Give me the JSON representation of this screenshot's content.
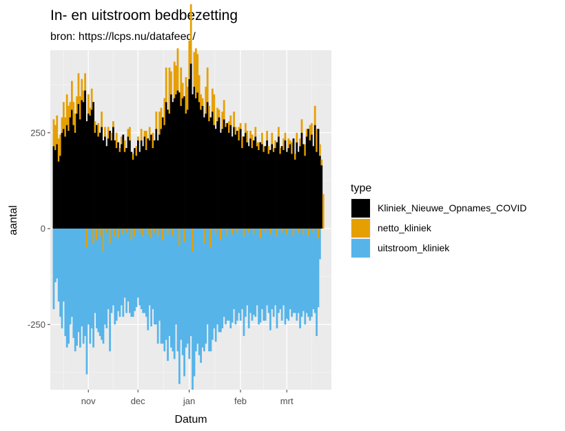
{
  "chart_data": {
    "type": "bar",
    "title": "In- en uitstroom bedbezetting",
    "subtitle": "bron: https://lcps.nu/datafeed/",
    "xlabel": "Datum",
    "ylabel": "aantal",
    "x_ticks": [
      "nov",
      "dec",
      "jan",
      "feb",
      "mrt"
    ],
    "x_tick_dates": [
      "2020-11-01",
      "2020-12-01",
      "2021-01-01",
      "2021-02-01",
      "2021-03-01"
    ],
    "x_range": [
      "2020-10-09",
      "2021-03-28"
    ],
    "y_ticks": [
      -250,
      0,
      250
    ],
    "ylim": [
      -420,
      465
    ],
    "grid": true,
    "legend_title": "type",
    "legend_position": "right",
    "series": [
      {
        "name": "Kliniek_Nieuwe_Opnames_COVID",
        "color": "#000000",
        "start_date": "2020-10-11",
        "values": [
          215,
          205,
          220,
          175,
          190,
          250,
          260,
          240,
          270,
          255,
          290,
          310,
          270,
          250,
          300,
          325,
          285,
          335,
          330,
          360,
          280,
          300,
          295,
          310,
          330,
          250,
          270,
          240,
          250,
          265,
          230,
          240,
          215,
          235,
          255,
          230,
          265,
          230,
          210,
          225,
          200,
          220,
          245,
          200,
          210,
          240,
          230,
          200,
          180,
          210,
          190,
          230,
          200,
          230,
          215,
          240,
          205,
          235,
          230,
          245,
          210,
          230,
          260,
          230,
          245,
          260,
          290,
          270,
          330,
          310,
          300,
          350,
          330,
          340,
          350,
          360,
          355,
          320,
          340,
          345,
          300,
          310,
          390,
          430,
          350,
          370,
          340,
          355,
          330,
          310,
          320,
          290,
          300,
          330,
          280,
          290,
          305,
          270,
          260,
          280,
          290,
          250,
          260,
          285,
          265,
          275,
          250,
          270,
          240,
          265,
          245,
          255,
          230,
          260,
          210,
          240,
          250,
          225,
          215,
          235,
          210,
          230,
          240,
          215,
          205,
          225,
          220,
          200,
          215,
          230,
          195,
          205,
          220,
          200,
          210,
          225,
          240,
          195,
          215,
          205,
          230,
          200,
          210,
          220,
          195,
          235,
          180,
          225,
          200,
          215,
          250,
          220,
          190,
          240,
          260,
          230,
          245,
          215,
          270,
          200,
          260,
          190,
          165
        ]
      },
      {
        "name": "netto_kliniek",
        "color": "#E69F00",
        "start_date": "2020-10-11",
        "values": [
          70,
          65,
          75,
          60,
          55,
          40,
          70,
          50,
          80,
          65,
          40,
          75,
          60,
          50,
          45,
          80,
          60,
          55,
          30,
          45,
          -50,
          50,
          20,
          55,
          -40,
          30,
          -30,
          35,
          -20,
          40,
          -60,
          25,
          -10,
          30,
          -40,
          20,
          15,
          -20,
          40,
          -25,
          10,
          20,
          -15,
          30,
          -10,
          20,
          35,
          -30,
          15,
          -20,
          25,
          10,
          -10,
          30,
          -20,
          15,
          50,
          -15,
          35,
          -25,
          40,
          -10,
          45,
          -20,
          60,
          55,
          -30,
          70,
          90,
          -15,
          120,
          60,
          -20,
          95,
          75,
          110,
          -45,
          100,
          40,
          -35,
          95,
          60,
          100,
          155,
          -60,
          90,
          130,
          100,
          70,
          40,
          20,
          -40,
          70,
          90,
          40,
          -50,
          60,
          80,
          -15,
          35,
          20,
          -30,
          45,
          50,
          10,
          -20,
          30,
          25,
          -15,
          40,
          20,
          -10,
          35,
          15,
          30,
          -20,
          25,
          30,
          -10,
          20,
          35,
          -15,
          25,
          10,
          20,
          -25,
          30,
          15,
          -10,
          25,
          20,
          -15,
          30,
          10,
          20,
          -20,
          25,
          15,
          -10,
          30,
          20,
          -15,
          25,
          10,
          30,
          -20,
          15,
          25,
          -10,
          20,
          35,
          -15,
          30,
          20,
          -20,
          40,
          30,
          -10,
          50,
          60,
          -25,
          30,
          15,
          90
        ]
      },
      {
        "name": "uitstroom_kliniek",
        "color": "#56B4E9",
        "start_date": "2020-10-11",
        "values": [
          -210,
          -140,
          -130,
          -190,
          -230,
          -260,
          -190,
          -280,
          -310,
          -300,
          -250,
          -230,
          -285,
          -320,
          -305,
          -270,
          -310,
          -255,
          -300,
          -280,
          -330,
          -250,
          -300,
          -260,
          -270,
          -220,
          -230,
          -270,
          -260,
          -290,
          -240,
          -250,
          -250,
          -210,
          -280,
          -220,
          -200,
          -230,
          -240,
          -190,
          -230,
          -200,
          -215,
          -180,
          -210,
          -190,
          -220,
          -200,
          -230,
          -195,
          -205,
          -180,
          -190,
          -210,
          -200,
          -220,
          -230,
          -250,
          -200,
          -230,
          -210,
          -240,
          -250,
          -280,
          -240,
          -300,
          -270,
          -320,
          -290,
          -330,
          -280,
          -310,
          -300,
          -340,
          -250,
          -320,
          -360,
          -290,
          -330,
          -350,
          -310,
          -300,
          -340,
          -280,
          -360,
          -385,
          -320,
          -300,
          -330,
          -350,
          -310,
          -280,
          -300,
          -250,
          -320,
          -270,
          -290,
          -260,
          -280,
          -250,
          -270,
          -240,
          -260,
          -230,
          -250,
          -220,
          -240,
          -260,
          -230,
          -210,
          -250,
          -230,
          -220,
          -240,
          -210,
          -260,
          -230,
          -200,
          -250,
          -220,
          -240,
          -210,
          -230,
          -200,
          -250,
          -220,
          -210,
          -240,
          -230,
          -200,
          -220,
          -250,
          -210,
          -230,
          -200,
          -240,
          -220,
          -210,
          -230,
          -200,
          -250,
          -220,
          -240,
          -210,
          -230,
          -200,
          -220,
          -240,
          -210,
          -260,
          -230,
          -200,
          -250,
          -220,
          -210,
          -240,
          -230,
          -200,
          -220,
          -280,
          -180,
          -80
        ]
      }
    ]
  }
}
